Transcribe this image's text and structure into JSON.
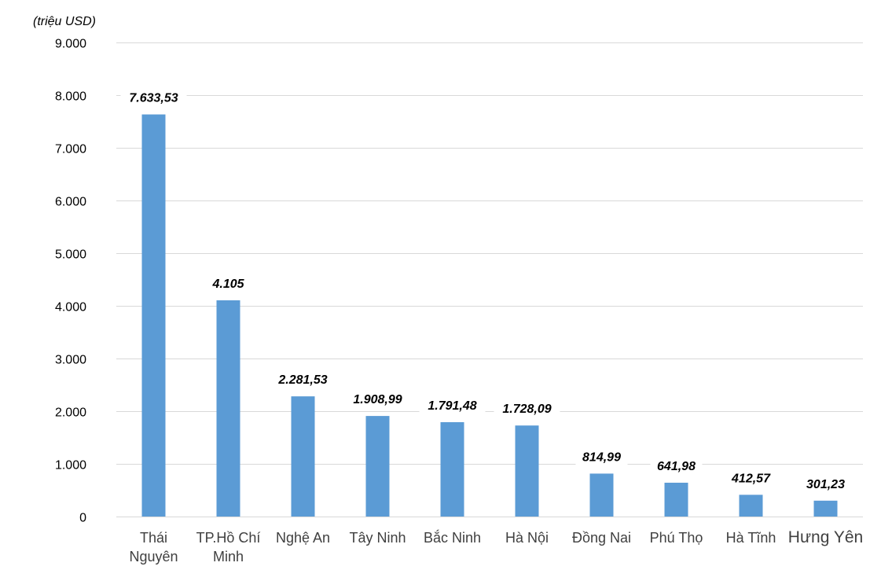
{
  "chart_data": {
    "type": "bar",
    "ylabel": "(triệu USD)",
    "ylim": [
      0,
      9000
    ],
    "yticks": [
      0,
      1000,
      2000,
      3000,
      4000,
      5000,
      6000,
      7000,
      8000,
      9000
    ],
    "ytick_labels": [
      "0",
      "1.000",
      "2.000",
      "3.000",
      "4.000",
      "5.000",
      "6.000",
      "7.000",
      "8.000",
      "9.000"
    ],
    "grid": true,
    "categories": [
      "Thái Nguyên",
      "TP.Hồ Chí Minh",
      "Nghệ An",
      "Tây Ninh",
      "Bắc Ninh",
      "Hà Nội",
      "Đồng Nai",
      "Phú Thọ",
      "Hà Tĩnh",
      "Hưng Yên"
    ],
    "category_label_lines": [
      [
        "Thái",
        "Nguyên"
      ],
      [
        "TP.Hồ Chí",
        "Minh"
      ],
      [
        "Nghệ An"
      ],
      [
        "Tây Ninh"
      ],
      [
        "Bắc Ninh"
      ],
      [
        "Hà Nội"
      ],
      [
        "Đồng Nai"
      ],
      [
        "Phú Thọ"
      ],
      [
        "Hà Tĩnh"
      ],
      [
        "Hưng Yên"
      ]
    ],
    "values": [
      7633.53,
      4105,
      2281.53,
      1908.99,
      1791.48,
      1728.09,
      814.99,
      641.98,
      412.57,
      301.23
    ],
    "data_labels": [
      "7.633,53",
      "4.105",
      "2.281,53",
      "1.908,99",
      "1.791,48",
      "1.728,09",
      "814,99",
      "641,98",
      "412,57",
      "301,23"
    ],
    "bar_color": "#5b9bd5"
  }
}
